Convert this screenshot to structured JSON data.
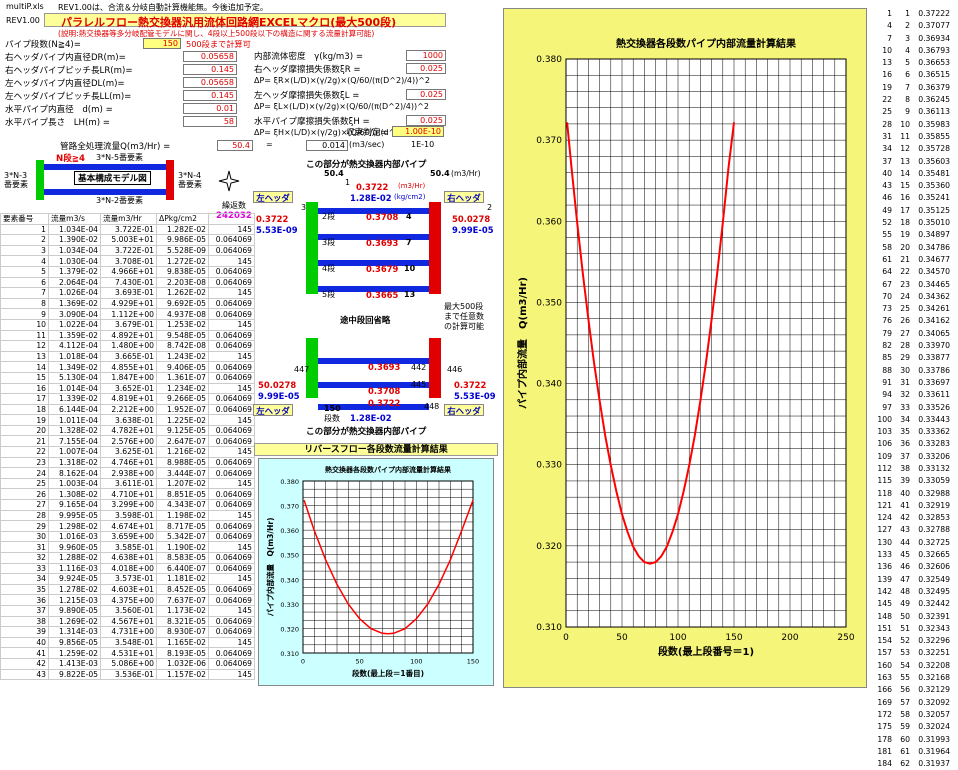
{
  "header": {
    "file": "multiP.xls",
    "note": "REV1.00は、合流＆分岐自動計算機能無。今後追加予定。",
    "rev": "REV1.00",
    "title": "パラレルフロー熱交換器汎用流体回路網EXCELマクロ(最大500段)",
    "subtitle": "(説明:熱交換器等多分岐配管モデルに関し、4段以上500段以下の構造に関する流量計算可能)"
  },
  "params_left": [
    {
      "label": "パイプ段数(N≧4)=",
      "value": "150",
      "extra": "500段まで計算可"
    },
    {
      "label": "右ヘッダパイプ内直径DR(m)=",
      "value": "0.05658"
    },
    {
      "label": "右ヘッダパイプピッチ長LR(m)=",
      "value": "0.145"
    },
    {
      "label": "左ヘッダパイプ内直径DL(m)=",
      "value": "0.05658"
    },
    {
      "label": "左ヘッダパイプピッチ長LL(m)=",
      "value": "0.145"
    },
    {
      "label": "水平パイプ内直径　d(m) =",
      "value": "0.01"
    },
    {
      "label": "水平パイプ長さ　LH(m) =",
      "value": "58"
    }
  ],
  "params_right": [
    {
      "label": "内部流体密度　γ(kg/m3) =",
      "value": "1000"
    },
    {
      "label": "右ヘッダ摩擦損失係数ξR =",
      "value": "0.025"
    },
    {
      "label": "ΔP= ξR×(L/D)×(γ/2g)×(Q/60/(π(D^2)/4))^2",
      "value": ""
    },
    {
      "label": "左ヘッダ摩擦損失係数ξL =",
      "value": "0.025"
    },
    {
      "label": "ΔP= ξL×(L/D)×(γ/2g)×(Q/60/(π(D^2)/4))^2",
      "value": ""
    },
    {
      "label": "水平パイプ摩擦損失係数ξH =",
      "value": "0.025"
    },
    {
      "label": "ΔP= ξH×(L/D)×(γ/2g)×(Q/60/(π(d^2)/4))^2",
      "value": ""
    }
  ],
  "convergence": {
    "label": "収束判定=",
    "value": "1.00E-10"
  },
  "total_flow": {
    "label": "管路全処理流量Q(m3/Hr) =",
    "value": "50.4",
    "eq": "=",
    "m3s": "0.014",
    "unit": "(m3/sec)",
    "tol": "1E-10"
  },
  "model": {
    "nstage": "N段≧4",
    "top_label": "3*N-5番要素",
    "title": "基本構成モデル図",
    "left_label": "3*N-3\n番要素",
    "right_label": "3*N-4\n番要素",
    "bottom_label": "3*N-2番要素"
  },
  "diagram": {
    "top_caption": "この部分が熱交換器内部パイプ",
    "bottom_caption": "この部分が熱交換器内部パイプ",
    "left_header": "左ヘッダ",
    "right_header": "右ヘッダ",
    "left_header2": "左ヘッダ",
    "right_header2": "右ヘッダ",
    "in_flow": "50.4",
    "out_flow": "50.4",
    "unit": "(m3/Hr)",
    "top_q": "0.3722",
    "top_unit": "(m3/Hr)",
    "top_q2": "1.28E-02",
    "top_unit2": "(kg/cm2)",
    "left_vals": [
      "0.3722",
      "5.53E-09"
    ],
    "right_vals": [
      "50.0278",
      "9.99E-05"
    ],
    "stages": [
      {
        "lbl": "2段",
        "v": "0.3708",
        "n": "4"
      },
      {
        "lbl": "3段",
        "v": "0.3693",
        "n": "7"
      },
      {
        "lbl": "4段",
        "v": "0.3679",
        "n": "10"
      },
      {
        "lbl": "5段",
        "v": "0.3665",
        "n": "13"
      }
    ],
    "mid_note": "途中段回省略",
    "right_note": "最大500段\nまで任意数\nの計算可能",
    "bot_vals_left": [
      "50.0278",
      "9.99E-05"
    ],
    "bot_vals_right": [
      "0.3722",
      "5.53E-09"
    ],
    "bot_stages": [
      {
        "v": "0.3693",
        "n": "442"
      },
      {
        "v": "0.3708",
        "n": "445"
      },
      {
        "v": "0.3722",
        "n": ""
      }
    ],
    "bot_flow_label": "150",
    "bot_flow_label2": "段数",
    "bot_q": "1.28E-02",
    "node_447": "447",
    "node_446": "446",
    "node_448": "448",
    "node_1": "1",
    "node_2": "2",
    "node_3": "3",
    "rev_title": "リバースフロー各段数流量計算結果"
  },
  "table": {
    "headers": [
      "要素番号",
      "流量m3/s",
      "流量m3/Hr",
      "ΔPkg/cm2",
      "繰返数"
    ],
    "iter": "242032",
    "rows": [
      [
        "1",
        "1.034E-04",
        "3.722E-01",
        "1.282E-02",
        "145"
      ],
      [
        "2",
        "1.390E-02",
        "5.003E+01",
        "9.986E-05",
        "0.064069"
      ],
      [
        "3",
        "1.034E-04",
        "3.722E-01",
        "5.528E-09",
        "0.064069"
      ],
      [
        "4",
        "1.030E-04",
        "3.708E-01",
        "1.272E-02",
        "145"
      ],
      [
        "5",
        "1.379E-02",
        "4.966E+01",
        "9.838E-05",
        "0.064069"
      ],
      [
        "6",
        "2.064E-04",
        "7.430E-01",
        "2.203E-08",
        "0.064069"
      ],
      [
        "7",
        "1.026E-04",
        "3.693E-01",
        "1.262E-02",
        "145"
      ],
      [
        "8",
        "1.369E-02",
        "4.929E+01",
        "9.692E-05",
        "0.064069"
      ],
      [
        "9",
        "3.090E-04",
        "1.112E+00",
        "4.937E-08",
        "0.064069"
      ],
      [
        "10",
        "1.022E-04",
        "3.679E-01",
        "1.253E-02",
        "145"
      ],
      [
        "11",
        "1.359E-02",
        "4.892E+01",
        "9.548E-05",
        "0.064069"
      ],
      [
        "12",
        "4.112E-04",
        "1.480E+00",
        "8.742E-08",
        "0.064069"
      ],
      [
        "13",
        "1.018E-04",
        "3.665E-01",
        "1.243E-02",
        "145"
      ],
      [
        "14",
        "1.349E-02",
        "4.855E+01",
        "9.406E-05",
        "0.064069"
      ],
      [
        "15",
        "5.130E-04",
        "1.847E+00",
        "1.361E-07",
        "0.064069"
      ],
      [
        "16",
        "1.014E-04",
        "3.652E-01",
        "1.234E-02",
        "145"
      ],
      [
        "17",
        "1.339E-02",
        "4.819E+01",
        "9.266E-05",
        "0.064069"
      ],
      [
        "18",
        "6.144E-04",
        "2.212E+00",
        "1.952E-07",
        "0.064069"
      ],
      [
        "19",
        "1.011E-04",
        "3.638E-01",
        "1.225E-02",
        "145"
      ],
      [
        "20",
        "1.328E-02",
        "4.782E+01",
        "9.125E-05",
        "0.064069"
      ],
      [
        "21",
        "7.155E-04",
        "2.576E+00",
        "2.647E-07",
        "0.064069"
      ],
      [
        "22",
        "1.007E-04",
        "3.625E-01",
        "1.216E-02",
        "145"
      ],
      [
        "23",
        "1.318E-02",
        "4.746E+01",
        "8.988E-05",
        "0.064069"
      ],
      [
        "24",
        "8.162E-04",
        "2.938E+00",
        "3.444E-07",
        "0.064069"
      ],
      [
        "25",
        "1.003E-04",
        "3.611E-01",
        "1.207E-02",
        "145"
      ],
      [
        "26",
        "1.308E-02",
        "4.710E+01",
        "8.851E-05",
        "0.064069"
      ],
      [
        "27",
        "9.165E-04",
        "3.299E+00",
        "4.343E-07",
        "0.064069"
      ],
      [
        "28",
        "9.995E-05",
        "3.598E-01",
        "1.198E-02",
        "145"
      ],
      [
        "29",
        "1.298E-02",
        "4.674E+01",
        "8.717E-05",
        "0.064069"
      ],
      [
        "30",
        "1.016E-03",
        "3.659E+00",
        "5.342E-07",
        "0.064069"
      ],
      [
        "31",
        "9.960E-05",
        "3.585E-01",
        "1.190E-02",
        "145"
      ],
      [
        "32",
        "1.288E-02",
        "4.638E+01",
        "8.583E-05",
        "0.064069"
      ],
      [
        "33",
        "1.116E-03",
        "4.018E+00",
        "6.440E-07",
        "0.064069"
      ],
      [
        "34",
        "9.924E-05",
        "3.573E-01",
        "1.181E-02",
        "145"
      ],
      [
        "35",
        "1.278E-02",
        "4.603E+01",
        "8.452E-05",
        "0.064069"
      ],
      [
        "36",
        "1.215E-03",
        "4.375E+00",
        "7.637E-07",
        "0.064069"
      ],
      [
        "37",
        "9.890E-05",
        "3.560E-01",
        "1.173E-02",
        "145"
      ],
      [
        "38",
        "1.269E-02",
        "4.567E+01",
        "8.321E-05",
        "0.064069"
      ],
      [
        "39",
        "1.314E-03",
        "4.731E+00",
        "8.930E-07",
        "0.064069"
      ],
      [
        "40",
        "9.856E-05",
        "3.548E-01",
        "1.165E-02",
        "145"
      ],
      [
        "41",
        "1.259E-02",
        "4.531E+01",
        "8.193E-05",
        "0.064069"
      ],
      [
        "42",
        "1.413E-03",
        "5.086E+00",
        "1.032E-06",
        "0.064069"
      ],
      [
        "43",
        "9.822E-05",
        "3.536E-01",
        "1.157E-02",
        "145"
      ]
    ]
  },
  "right_list": [
    [
      "1",
      "1",
      "0.37222"
    ],
    [
      "4",
      "2",
      "0.37077"
    ],
    [
      "7",
      "3",
      "0.36934"
    ],
    [
      "10",
      "4",
      "0.36793"
    ],
    [
      "13",
      "5",
      "0.36653"
    ],
    [
      "16",
      "6",
      "0.36515"
    ],
    [
      "19",
      "7",
      "0.36379"
    ],
    [
      "22",
      "8",
      "0.36245"
    ],
    [
      "25",
      "9",
      "0.36113"
    ],
    [
      "28",
      "10",
      "0.35983"
    ],
    [
      "31",
      "11",
      "0.35855"
    ],
    [
      "34",
      "12",
      "0.35728"
    ],
    [
      "37",
      "13",
      "0.35603"
    ],
    [
      "40",
      "14",
      "0.35481"
    ],
    [
      "43",
      "15",
      "0.35360"
    ],
    [
      "46",
      "16",
      "0.35241"
    ],
    [
      "49",
      "17",
      "0.35125"
    ],
    [
      "52",
      "18",
      "0.35010"
    ],
    [
      "55",
      "19",
      "0.34897"
    ],
    [
      "58",
      "20",
      "0.34786"
    ],
    [
      "61",
      "21",
      "0.34677"
    ],
    [
      "64",
      "22",
      "0.34570"
    ],
    [
      "67",
      "23",
      "0.34465"
    ],
    [
      "70",
      "24",
      "0.34362"
    ],
    [
      "73",
      "25",
      "0.34261"
    ],
    [
      "76",
      "26",
      "0.34162"
    ],
    [
      "79",
      "27",
      "0.34065"
    ],
    [
      "82",
      "28",
      "0.33970"
    ],
    [
      "85",
      "29",
      "0.33877"
    ],
    [
      "88",
      "30",
      "0.33786"
    ],
    [
      "91",
      "31",
      "0.33697"
    ],
    [
      "94",
      "32",
      "0.33611"
    ],
    [
      "97",
      "33",
      "0.33526"
    ],
    [
      "100",
      "34",
      "0.33443"
    ],
    [
      "103",
      "35",
      "0.33362"
    ],
    [
      "106",
      "36",
      "0.33283"
    ],
    [
      "109",
      "37",
      "0.33206"
    ],
    [
      "112",
      "38",
      "0.33132"
    ],
    [
      "115",
      "39",
      "0.33059"
    ],
    [
      "118",
      "40",
      "0.32988"
    ],
    [
      "121",
      "41",
      "0.32919"
    ],
    [
      "124",
      "42",
      "0.32853"
    ],
    [
      "127",
      "43",
      "0.32788"
    ],
    [
      "130",
      "44",
      "0.32725"
    ],
    [
      "133",
      "45",
      "0.32665"
    ],
    [
      "136",
      "46",
      "0.32606"
    ],
    [
      "139",
      "47",
      "0.32549"
    ],
    [
      "142",
      "48",
      "0.32495"
    ],
    [
      "145",
      "49",
      "0.32442"
    ],
    [
      "148",
      "50",
      "0.32391"
    ],
    [
      "151",
      "51",
      "0.32343"
    ],
    [
      "154",
      "52",
      "0.32296"
    ],
    [
      "157",
      "53",
      "0.32251"
    ],
    [
      "160",
      "54",
      "0.32208"
    ],
    [
      "163",
      "55",
      "0.32168"
    ],
    [
      "166",
      "56",
      "0.32129"
    ],
    [
      "169",
      "57",
      "0.32092"
    ],
    [
      "172",
      "58",
      "0.32057"
    ],
    [
      "175",
      "59",
      "0.32024"
    ],
    [
      "178",
      "60",
      "0.31993"
    ],
    [
      "181",
      "61",
      "0.31964"
    ],
    [
      "184",
      "62",
      "0.31937"
    ]
  ],
  "chart_data": [
    {
      "type": "line",
      "title": "熱交換器各段数パイプ内部流量計算結果",
      "xlabel": "段数(最上段番号＝1)",
      "ylabel": "パイプ内部流量　Q(m3/Hr)",
      "xlim": [
        0,
        250
      ],
      "ylim": [
        0.31,
        0.38
      ],
      "xticks": [
        "0",
        "50",
        "100",
        "150",
        "200",
        "250"
      ],
      "yticks": [
        "0.310",
        "0.320",
        "0.330",
        "0.340",
        "0.350",
        "0.360",
        "0.370",
        "0.380"
      ],
      "grid": true,
      "series": [
        {
          "color": "#ff0000",
          "x": [
            1,
            5,
            10,
            15,
            20,
            25,
            30,
            35,
            40,
            45,
            50,
            55,
            60,
            65,
            70,
            75,
            80,
            85,
            90,
            95,
            100,
            105,
            110,
            115,
            120,
            125,
            130,
            135,
            140,
            145,
            150
          ],
          "values": [
            0.3722,
            0.3665,
            0.3598,
            0.3536,
            0.3479,
            0.3426,
            0.3379,
            0.3336,
            0.3299,
            0.3267,
            0.3239,
            0.3217,
            0.3199,
            0.3187,
            0.318,
            0.3178,
            0.318,
            0.3187,
            0.3199,
            0.3217,
            0.3239,
            0.3267,
            0.3299,
            0.3336,
            0.3379,
            0.3426,
            0.3479,
            0.3536,
            0.3598,
            0.3665,
            0.3722
          ]
        }
      ]
    },
    {
      "type": "line",
      "title": "熱交換器各段数パイプ内部流量計算結果",
      "xlabel": "段数(最上段＝1番目)",
      "ylabel": "パイプ内部流量　Q(m3/Hr)",
      "xlim": [
        0,
        150
      ],
      "ylim": [
        0.31,
        0.38
      ],
      "xticks": [
        "0",
        "50",
        "100",
        "150"
      ],
      "yticks": [
        "0.310",
        "0.320",
        "0.330",
        "0.340",
        "0.350",
        "0.360",
        "0.370",
        "0.380"
      ],
      "grid": true,
      "series": [
        {
          "color": "#ff0000",
          "x": [
            1,
            10,
            20,
            30,
            40,
            50,
            60,
            70,
            75,
            80,
            90,
            100,
            110,
            120,
            130,
            140,
            150
          ],
          "values": [
            0.3722,
            0.3598,
            0.3479,
            0.3379,
            0.3299,
            0.3239,
            0.3199,
            0.318,
            0.3178,
            0.318,
            0.3199,
            0.3239,
            0.3299,
            0.3379,
            0.3479,
            0.3598,
            0.3722
          ]
        }
      ]
    }
  ],
  "colors": {
    "yellow": "#ffff99",
    "chart_bg": "#f5f57a",
    "mini_bg": "#ccffff",
    "pipe": "#1028e0",
    "red": "#e00000",
    "green": "#00cc00"
  }
}
